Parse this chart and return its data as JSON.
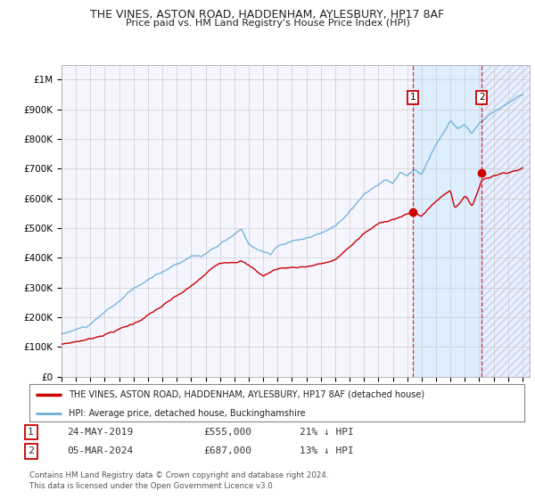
{
  "title": "THE VINES, ASTON ROAD, HADDENHAM, AYLESBURY, HP17 8AF",
  "subtitle": "Price paid vs. HM Land Registry's House Price Index (HPI)",
  "ylim": [
    0,
    1050000
  ],
  "yticks": [
    0,
    100000,
    200000,
    300000,
    400000,
    500000,
    600000,
    700000,
    800000,
    900000,
    1000000
  ],
  "ytick_labels": [
    "£0",
    "£100K",
    "£200K",
    "£300K",
    "£400K",
    "£500K",
    "£600K",
    "£700K",
    "£800K",
    "£900K",
    "£1M"
  ],
  "hpi_color": "#6baed6",
  "price_color": "#cc0000",
  "bg_color": "#ffffff",
  "plot_bg": "#f5f5ff",
  "grid_color": "#cccccc",
  "shade_color": "#ddeeff",
  "purchase1_date": 2019.39,
  "purchase1_price": 555000,
  "purchase2_date": 2024.17,
  "purchase2_price": 687000,
  "legend_line1": "THE VINES, ASTON ROAD, HADDENHAM, AYLESBURY, HP17 8AF (detached house)",
  "legend_line2": "HPI: Average price, detached house, Buckinghamshire",
  "table_row1": [
    "1",
    "24-MAY-2019",
    "£555,000",
    "21% ↓ HPI"
  ],
  "table_row2": [
    "2",
    "05-MAR-2024",
    "£687,000",
    "13% ↓ HPI"
  ],
  "footnote": "Contains HM Land Registry data © Crown copyright and database right 2024.\nThis data is licensed under the Open Government Licence v3.0.",
  "xstart": 1995,
  "xend": 2027.5
}
